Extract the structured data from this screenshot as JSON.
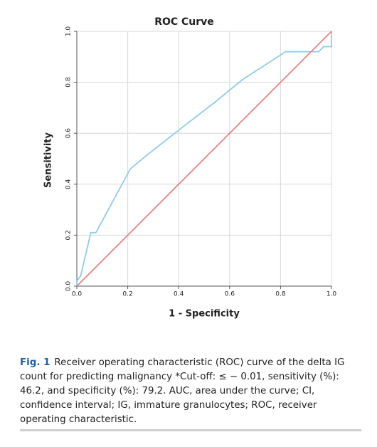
{
  "chart_data": {
    "type": "line",
    "title": "ROC Curve",
    "x_label": "1 - Specificity",
    "y_label": "Sensitivity",
    "xlim": [
      0,
      1
    ],
    "ylim": [
      0,
      1
    ],
    "xticks": [
      {
        "value": 0,
        "label": "0.0"
      },
      0.2,
      0.4,
      0.6,
      0.8,
      {
        "value": 1,
        "label": "1.0"
      }
    ],
    "yticks": [
      {
        "value": 0,
        "label": "0.0"
      },
      0.2,
      0.4,
      0.6,
      0.8,
      {
        "value": 1,
        "label": "1.0"
      }
    ],
    "grid": true,
    "series": [
      {
        "color": "#8fcbee",
        "x": [
          0,
          0,
          0.015,
          0.055,
          0.075,
          0.21,
          0.27,
          0.41,
          0.54,
          0.65,
          0.82,
          0.95,
          0.97,
          1,
          1
        ],
        "values": [
          0,
          0.02,
          0.04,
          0.21,
          0.21,
          0.46,
          0.51,
          0.62,
          0.72,
          0.81,
          0.92,
          0.92,
          0.94,
          0.94,
          1
        ]
      },
      {
        "color": "#f07f7f",
        "x": [
          0,
          1
        ],
        "values": [
          0,
          1
        ]
      }
    ]
  },
  "caption": {
    "label": "Fig. 1",
    "text": "Receiver operating characteristic (ROC) curve of the delta IG count for predicting malignancy *Cut-off: ≤ − 0.01, sensitivity (%): 46.2, and specificity (%): 79.2. AUC, area under the curve; CI, confidence interval; IG, immature granulocytes; ROC, receiver operating characteristic."
  }
}
